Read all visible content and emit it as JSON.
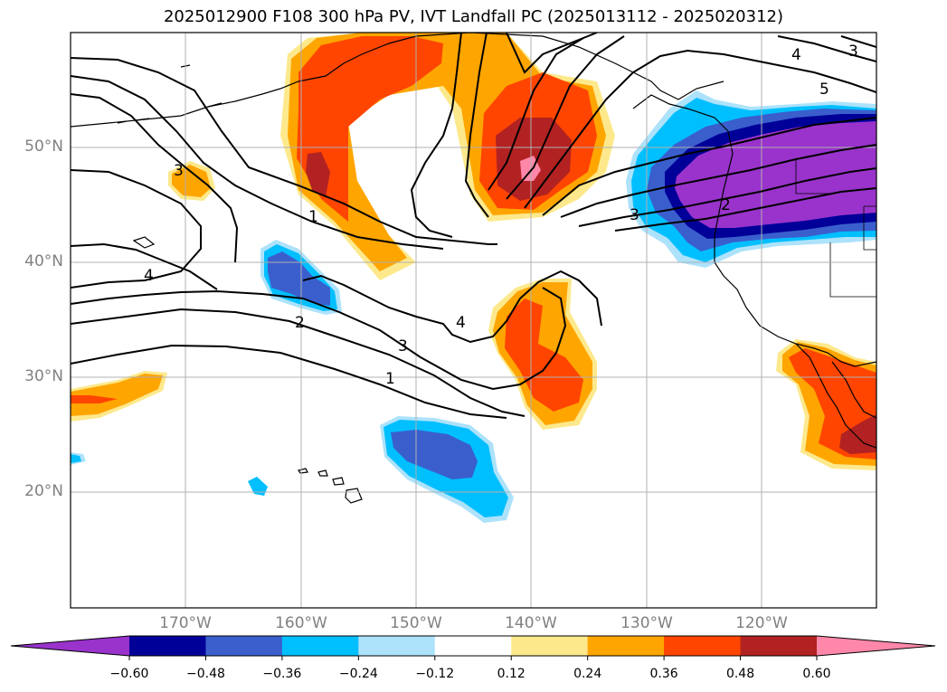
{
  "title": "2025012900 F108 300 hPa PV, IVT Landfall PC (2025013112 - 2025020312)",
  "map": {
    "projection": "PlateCarree",
    "lon_range": [
      -180,
      -110
    ],
    "lat_range": [
      10,
      60
    ],
    "gridlines": true,
    "lat_labels": [
      "50°N",
      "40°N",
      "30°N",
      "20°N"
    ],
    "lon_labels": [
      "170°W",
      "160°W",
      "150°W",
      "140°W",
      "130°W",
      "120°W"
    ]
  },
  "colorbar": {
    "extend": "both",
    "colors": [
      "#9933cc",
      "#000099",
      "#3a5fcd",
      "#00bfff",
      "#ade2fb",
      "#ffffff",
      "#fde98c",
      "#ffa500",
      "#ff4500",
      "#b22222",
      "#ff88aa"
    ],
    "tick_labels": [
      "−0.60",
      "−0.48",
      "−0.36",
      "−0.24",
      "−0.12",
      "0.12",
      "0.24",
      "0.36",
      "0.48",
      "0.60"
    ]
  },
  "contour_labels": [
    "1",
    "2",
    "3",
    "4",
    "5"
  ]
}
